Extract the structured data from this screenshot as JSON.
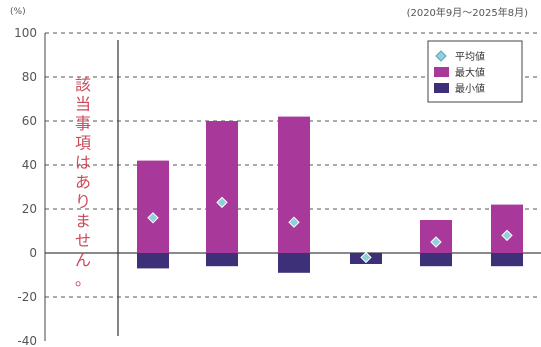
{
  "chart_data": {
    "type": "bar",
    "title": "",
    "unit_label": "(%)",
    "period_label": "(2020年9月～2025年8月)",
    "note_text": "該当事項はありません。",
    "xlabel": "",
    "ylabel": "",
    "ylim": [
      -40,
      100
    ],
    "yticks": [
      -40,
      -20,
      0,
      20,
      40,
      60,
      80,
      100
    ],
    "grid": true,
    "legend_position": "top-right",
    "legend": [
      {
        "key": "mean",
        "label": "平均値",
        "color": "#8fd0dc"
      },
      {
        "key": "max",
        "label": "最大値",
        "color": "#a8399a"
      },
      {
        "key": "min",
        "label": "最小値",
        "color": "#3d2f78"
      }
    ],
    "categories": [
      "",
      "",
      "",
      "",
      "",
      "",
      ""
    ],
    "series": [
      {
        "key": "max",
        "values": [
          null,
          42,
          60,
          62,
          0,
          15,
          22
        ]
      },
      {
        "key": "min",
        "values": [
          null,
          -7,
          -6,
          -9,
          -5,
          -6,
          -6
        ]
      },
      {
        "key": "mean",
        "values": [
          null,
          16,
          23,
          14,
          -2,
          5,
          8
        ]
      }
    ]
  }
}
